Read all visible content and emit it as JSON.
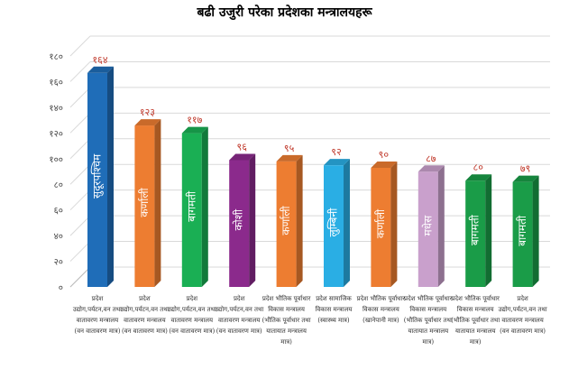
{
  "chart_data": {
    "type": "bar",
    "title": "बढी उजुरी परेका प्रदेशका मन्त्रालयहरू",
    "xlabel": "",
    "ylabel": "",
    "ylim": [
      0,
      180
    ],
    "yticks": [
      0,
      20,
      40,
      60,
      80,
      100,
      120,
      140,
      160,
      180
    ],
    "ytick_labels": [
      "०",
      "२०",
      "४०",
      "६०",
      "८०",
      "१००",
      "१२०",
      "१४०",
      "१६०",
      "१८०"
    ],
    "grid": true,
    "categories": [
      "प्रदेश उद्योग,पर्यटन,वन तथा वातावरण मन्त्रालय (वन वातावरण मात्र)",
      "प्रदेश उद्योग,पर्यटन,वन तथा वातावरण मन्त्रालय (वन वातावरण मात्र)",
      "प्रदेश उद्योग,पर्यटन,वन तथा वातावरण मन्त्रालय (वन वातावरण मात्र)",
      "प्रदेश उद्योग,पर्यटन,वन तथा वातावरण मन्त्रालय (वन वातावरण मात्र)",
      "प्रदेश भौतिक पूर्वाधार विकास मन्त्रालय (भौतिक पूर्वाधार तथा यातायात मन्त्रालय मात्र)",
      "प्रदेश सामाजिक विकास मन्त्रालय (स्वास्थ्य मात्र)",
      "प्रदेश भौतिक पूर्वाधार विकास मन्त्रालय (खानेपानी मात्र)",
      "प्रदेश भौतिक पूर्वाधार विकास मन्त्रालय (भौतिक पूर्वाधार तथा यातायात मन्त्रालय मात्र)",
      "प्रदेश भौतिक पूर्वाधार विकास मन्त्रालय (भौतिक पूर्वाधार तथा यातायात मन्त्रालय मात्र)",
      "प्रदेश उद्योग,पर्यटन,वन तथा वातावरण मन्त्रालय (वन वातावरण मात्र)"
    ],
    "provinces": [
      "सुदूरपश्चिम",
      "कर्णाली",
      "बागमती",
      "कोशी",
      "कर्णाली",
      "लुम्बिनी",
      "कर्णाली",
      "मधेस",
      "बागमती",
      "बागमती"
    ],
    "values": [
      164,
      123,
      117,
      96,
      95,
      92,
      90,
      87,
      80,
      79
    ],
    "value_labels": [
      "१६४",
      "१२३",
      "११७",
      "९६",
      "९५",
      "९२",
      "९०",
      "८७",
      "८०",
      "७९"
    ],
    "colors": [
      "#1f6db8",
      "#ed7d31",
      "#1aaf54",
      "#8b2a8c",
      "#ed7d31",
      "#2aaee4",
      "#ed7d31",
      "#c9a0cc",
      "#1a9c48",
      "#1a9c48"
    ],
    "label_color": "#c0392b"
  }
}
